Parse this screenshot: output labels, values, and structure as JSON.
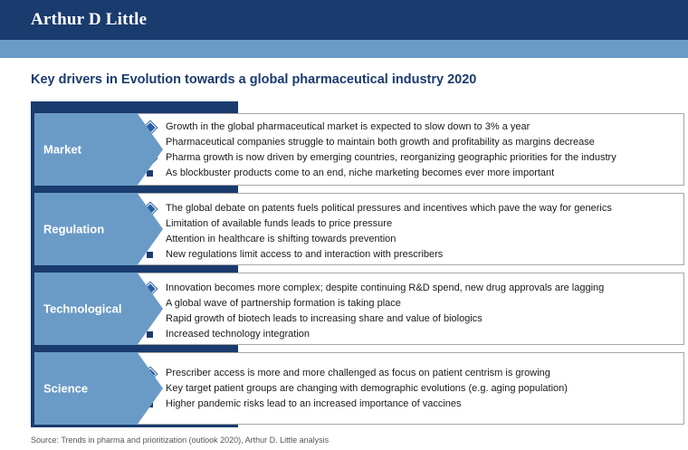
{
  "header": {
    "logo_text": "Arthur D Little",
    "brand_color": "#1a3b6e",
    "accent_color": "#6a9bc7"
  },
  "title": "Key drivers in Evolution towards a global pharmaceutical industry 2020",
  "drivers": [
    {
      "label": "Market",
      "bullets": [
        {
          "text": "Growth in the global pharmaceutical market is expected to slow down to 3% a year",
          "icon": "diamond-bullet-icon"
        },
        {
          "text": "Pharmaceutical companies struggle to maintain both growth and profitability as margins decrease",
          "icon": "diamond-bullet-icon"
        },
        {
          "text": "Pharma growth is now driven by emerging countries, reorganizing geographic priorities for the industry",
          "icon": "diamond-bullet-icon"
        },
        {
          "text": "As blockbuster products come to an end, niche marketing becomes ever more important",
          "icon": "square-bullet-icon"
        }
      ]
    },
    {
      "label": "Regulation",
      "bullets": [
        {
          "text": "The global debate on patents fuels political pressures and incentives which pave the way for generics",
          "icon": "diamond-bullet-icon"
        },
        {
          "text": "Limitation of available funds leads to price pressure",
          "icon": "square-bullet-icon"
        },
        {
          "text": "Attention in healthcare is shifting towards prevention",
          "icon": "square-bullet-icon"
        },
        {
          "text": "New regulations limit access to and interaction with prescribers",
          "icon": "square-bullet-icon"
        }
      ]
    },
    {
      "label": "Technological",
      "bullets": [
        {
          "text": "Innovation becomes more complex; despite continuing R&D spend, new drug approvals are lagging",
          "icon": "diamond-bullet-icon"
        },
        {
          "text": "A global wave of partnership formation is taking place",
          "icon": "diamond-bullet-icon"
        },
        {
          "text": "Rapid growth of biotech leads to increasing share and value of biologics",
          "icon": "square-bullet-icon"
        },
        {
          "text": "Increased technology integration",
          "icon": "square-bullet-icon"
        }
      ]
    },
    {
      "label": "Science",
      "bullets": [
        {
          "text": "Prescriber access is more and more challenged as focus on patient centrism is growing",
          "icon": "diamond-bullet-icon"
        },
        {
          "text": "Key target patient groups are changing with demographic evolutions (e.g. aging population)",
          "icon": "square-bullet-icon"
        },
        {
          "text": "Higher pandemic risks lead to an increased importance of vaccines",
          "icon": "square-bullet-icon"
        }
      ]
    }
  ],
  "source": "Source: Trends in pharma and prioritization (outlook 2020), Arthur D. Little analysis"
}
